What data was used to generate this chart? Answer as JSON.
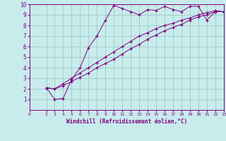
{
  "xlabel": "Windchill (Refroidissement éolien,°C)",
  "bg_color": "#c8ecec",
  "line_color": "#800080",
  "grid_color": "#a0c8c8",
  "xlim": [
    0,
    23
  ],
  "ylim": [
    0,
    10
  ],
  "xticks": [
    0,
    2,
    3,
    4,
    5,
    6,
    7,
    8,
    9,
    10,
    11,
    12,
    13,
    14,
    15,
    16,
    17,
    18,
    19,
    20,
    21,
    22,
    23
  ],
  "yticks": [
    1,
    2,
    3,
    4,
    5,
    6,
    7,
    8,
    9,
    10
  ],
  "line1_x": [
    2,
    3,
    4,
    5,
    6,
    7,
    8,
    9,
    10,
    11,
    12,
    13,
    14,
    15,
    16,
    17,
    18,
    19,
    20,
    21,
    22,
    23
  ],
  "line1_y": [
    2.1,
    1.0,
    1.1,
    2.9,
    4.0,
    5.9,
    7.0,
    8.5,
    9.9,
    9.6,
    9.3,
    9.0,
    9.5,
    9.4,
    9.8,
    9.5,
    9.3,
    9.8,
    9.8,
    8.5,
    9.3,
    9.3
  ],
  "line2_x": [
    2,
    3,
    4,
    5,
    6,
    7,
    8,
    9,
    10,
    11,
    12,
    13,
    14,
    15,
    16,
    17,
    18,
    19,
    20,
    21,
    22,
    23
  ],
  "line2_y": [
    2.1,
    2.0,
    2.5,
    3.0,
    3.5,
    4.0,
    4.5,
    5.0,
    5.5,
    6.0,
    6.5,
    7.0,
    7.3,
    7.7,
    8.0,
    8.2,
    8.5,
    8.7,
    9.0,
    9.2,
    9.4,
    9.3
  ],
  "line3_x": [
    2,
    3,
    4,
    5,
    6,
    7,
    8,
    9,
    10,
    11,
    12,
    13,
    14,
    15,
    16,
    17,
    18,
    19,
    20,
    21,
    22,
    23
  ],
  "line3_y": [
    2.1,
    2.0,
    2.3,
    2.7,
    3.1,
    3.5,
    4.0,
    4.4,
    4.8,
    5.3,
    5.8,
    6.2,
    6.7,
    7.1,
    7.5,
    7.8,
    8.1,
    8.5,
    8.8,
    9.0,
    9.3,
    9.3
  ]
}
